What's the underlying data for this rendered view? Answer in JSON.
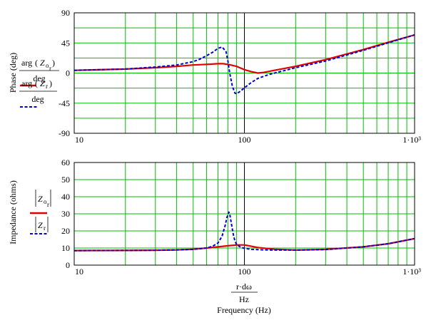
{
  "chart_data": [
    {
      "type": "line",
      "xscale": "log",
      "xlim": [
        10,
        1000
      ],
      "ylim": [
        -90,
        90
      ],
      "y_ticks": [
        "90",
        "45",
        "0",
        "-45",
        "-90"
      ],
      "x_ticks": [
        "10",
        "100",
        "1·10³"
      ],
      "ylabel": "Phase (deg)",
      "grid": true,
      "series": [
        {
          "name": "arg(Z_or)/deg",
          "color": "#e00000",
          "style": "solid",
          "x": [
            10,
            20,
            30,
            40,
            50,
            60,
            70,
            75,
            80,
            90,
            100,
            110,
            120,
            130,
            150,
            200,
            300,
            500,
            700,
            1000
          ],
          "y": [
            4,
            6,
            8,
            10,
            12,
            13,
            14,
            14,
            13,
            10,
            5,
            2,
            0,
            1,
            4,
            10,
            20,
            35,
            46,
            57
          ]
        },
        {
          "name": "arg(Z_r)/deg",
          "color": "#0000d0",
          "style": "dashed",
          "x": [
            10,
            20,
            30,
            40,
            50,
            55,
            60,
            65,
            70,
            74,
            78,
            80,
            82,
            85,
            88,
            90,
            95,
            100,
            110,
            120,
            140,
            200,
            300,
            500,
            1000
          ],
          "y": [
            4,
            6,
            9,
            12,
            17,
            21,
            26,
            31,
            37,
            39,
            32,
            18,
            0,
            -20,
            -30,
            -31,
            -27,
            -22,
            -14,
            -8,
            -2,
            8,
            18,
            34,
            57
          ]
        }
      ]
    },
    {
      "type": "line",
      "xscale": "log",
      "xlim": [
        10,
        1000
      ],
      "ylim": [
        0,
        60
      ],
      "y_ticks": [
        "60",
        "50",
        "40",
        "30",
        "20",
        "10",
        "0"
      ],
      "x_ticks": [
        "10",
        "100",
        "1·10³"
      ],
      "ylabel": "Impedance (ohms)",
      "xlabel": "Frequency (Hz)",
      "x_expr": {
        "num": "r·dω",
        "den": "Hz"
      },
      "grid": true,
      "series": [
        {
          "name": "|Z_or|",
          "color": "#e00000",
          "style": "solid",
          "x": [
            10,
            20,
            30,
            40,
            50,
            60,
            70,
            80,
            90,
            100,
            110,
            120,
            150,
            200,
            300,
            500,
            700,
            1000
          ],
          "y": [
            8.5,
            8.6,
            8.7,
            8.9,
            9.3,
            10,
            10.7,
            11.3,
            11.8,
            11.8,
            11,
            10.3,
            9.3,
            8.8,
            9.2,
            10.7,
            12.5,
            15.5
          ]
        },
        {
          "name": "|Z_r|",
          "color": "#0000d0",
          "style": "dashed",
          "x": [
            10,
            20,
            30,
            40,
            50,
            60,
            65,
            70,
            74,
            77,
            79,
            81,
            82,
            84,
            86,
            88,
            90,
            95,
            100,
            110,
            130,
            150,
            200,
            300,
            500,
            700,
            1000
          ],
          "y": [
            8.5,
            8.6,
            8.7,
            8.9,
            9.2,
            10,
            11,
            13,
            17,
            23,
            28,
            31,
            30,
            24,
            18,
            14,
            12,
            10.5,
            9.8,
            9.2,
            8.9,
            8.8,
            8.8,
            9.1,
            10.7,
            12.5,
            15.5
          ]
        }
      ]
    }
  ],
  "legend": {
    "phase_red": {
      "func": "arg",
      "var": "Z",
      "sub": "o",
      "subsub": "r",
      "den": "deg"
    },
    "phase_blue": {
      "func": "arg",
      "var": "Z",
      "sub": "r",
      "den": "deg"
    },
    "imp_red": {
      "var": "Z",
      "sub": "o",
      "subsub": "r"
    },
    "imp_blue": {
      "var": "Z",
      "sub": "r"
    }
  },
  "colors": {
    "grid": "#00c000",
    "cursor": "#000000",
    "red": "#e00000",
    "blue": "#0000d0"
  }
}
